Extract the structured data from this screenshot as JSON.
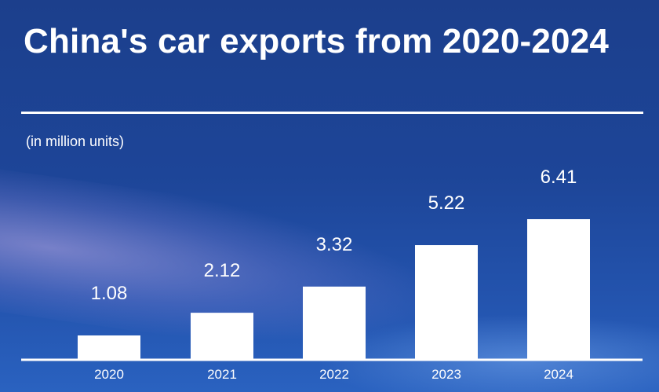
{
  "chart_data": {
    "type": "bar",
    "title": "China's car exports from 2020-2024",
    "unit_label": "(in million units)",
    "xlabel": "",
    "ylabel": "",
    "categories": [
      "2020",
      "2021",
      "2022",
      "2023",
      "2024"
    ],
    "values": [
      1.08,
      2.12,
      3.32,
      5.22,
      6.41
    ],
    "value_labels": [
      "1.08",
      "2.12",
      "3.32",
      "5.22",
      "6.41"
    ],
    "ylim": [
      0,
      6.41
    ],
    "grid": false,
    "bar_color": "#ffffff",
    "background_color": "#1d4598"
  }
}
